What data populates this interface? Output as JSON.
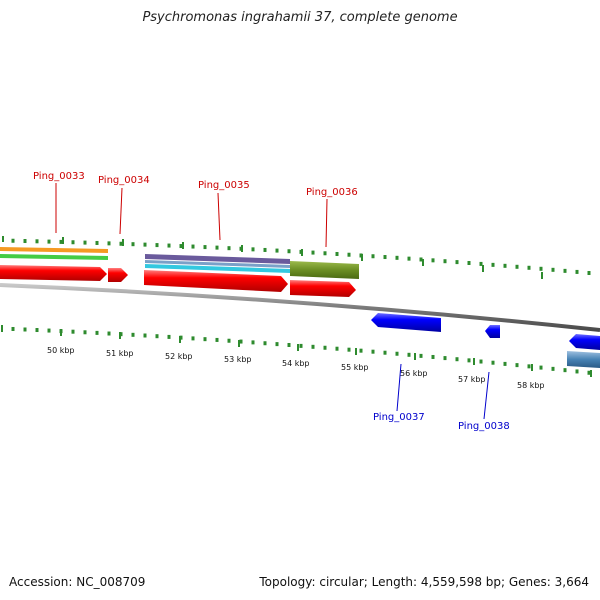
{
  "title": "Psychromonas ingrahamii 37, complete genome",
  "footer": {
    "accession": "Accession: NC_008709",
    "summary": "Topology: circular; Length: 4,559,598 bp; Genes: 3,664"
  },
  "colors": {
    "forward_label": "#cc0000",
    "reverse_label": "#0000cc",
    "forward_cds": "#ff0000",
    "reverse_cds": "#0000ff",
    "backbone": "#808080",
    "tick": "#2e8b2e"
  },
  "scale_labels": [
    "50 kbp",
    "51 kbp",
    "52 kbp",
    "53 kbp",
    "54 kbp",
    "55 kbp",
    "56 kbp",
    "57 kbp",
    "58 kbp"
  ],
  "genes": {
    "forward": [
      "Ping_0033",
      "Ping_0034",
      "Ping_0035",
      "Ping_0036"
    ],
    "reverse": [
      "Ping_0037",
      "Ping_0038"
    ]
  }
}
